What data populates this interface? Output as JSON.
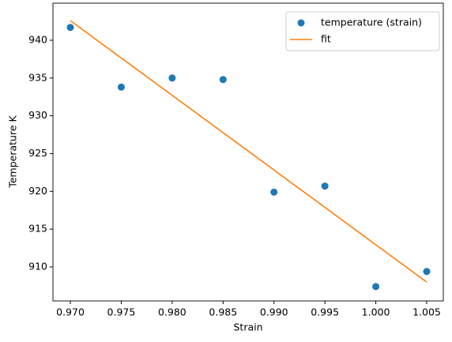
{
  "chart_data": {
    "type": "scatter",
    "xlabel": "Strain",
    "ylabel": "Temperature K",
    "xlim": [
      0.96829,
      1.00663
    ],
    "ylim": [
      905.5,
      944.91
    ],
    "xticks": [
      {
        "value": 0.97,
        "label": "0.970"
      },
      {
        "value": 0.975,
        "label": "0.975"
      },
      {
        "value": 0.98,
        "label": "0.980"
      },
      {
        "value": 0.985,
        "label": "0.985"
      },
      {
        "value": 0.99,
        "label": "0.990"
      },
      {
        "value": 0.995,
        "label": "0.995"
      },
      {
        "value": 1.0,
        "label": "1.000"
      },
      {
        "value": 1.005,
        "label": "1.005"
      }
    ],
    "yticks": [
      910,
      915,
      920,
      925,
      930,
      935,
      940
    ],
    "grid": false,
    "legend": "upper right",
    "series": [
      {
        "name": "temperature (strain)",
        "type": "scatter",
        "color": "#1f77b4",
        "x": [
          0.97,
          0.975,
          0.98,
          0.985,
          0.99,
          0.995,
          1.0,
          1.005
        ],
        "values": [
          941.7,
          933.8,
          935.0,
          934.8,
          919.9,
          920.7,
          907.4,
          909.4
        ]
      },
      {
        "name": "fit",
        "type": "line",
        "color": "#ff7f0e",
        "x": [
          0.97,
          1.005
        ],
        "values": [
          942.6,
          908.0
        ]
      }
    ]
  }
}
